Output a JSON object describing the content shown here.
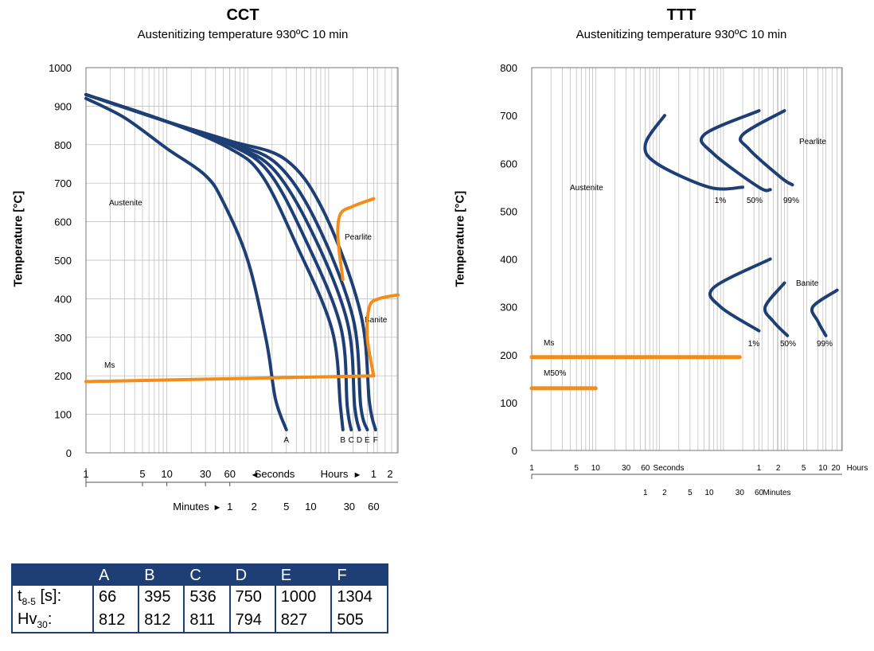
{
  "cct": {
    "title": "CCT",
    "subtitle": "Austenitizing temperature 930ºC 10 min",
    "ylabel": "Temperature [°C]",
    "y_ticks": [
      "1000",
      "900",
      "800",
      "700",
      "600",
      "500",
      "400",
      "300",
      "200",
      "100",
      "0"
    ],
    "sec_ticks": [
      "1",
      "5",
      "10",
      "30",
      "60"
    ],
    "hour_ticks": [
      "1",
      "2"
    ],
    "min_ticks": [
      "1",
      "2",
      "5",
      "10",
      "30",
      "60"
    ],
    "seconds_label": "Seconds",
    "hours_label": "Hours",
    "minutes_label": "Minutes",
    "region_labels": {
      "austenite": "Austenite",
      "pearlite": "Pearlite",
      "banite": "Banite",
      "ms": "Ms"
    },
    "curve_labels": [
      "A",
      "B",
      "C",
      "D",
      "E",
      "F"
    ]
  },
  "ttt": {
    "title": "TTT",
    "subtitle": "Austenitizing temperature 930ºC 10 min",
    "ylabel": "Temperature [°C]",
    "y_ticks": [
      "800",
      "700",
      "600",
      "500",
      "400",
      "300",
      "200",
      "100",
      "0"
    ],
    "sec_ticks": [
      "1",
      "5",
      "10",
      "30",
      "60"
    ],
    "hour_ticks": [
      "1",
      "2",
      "5",
      "10",
      "20"
    ],
    "min_ticks": [
      "1",
      "2",
      "5",
      "10",
      "30",
      "60"
    ],
    "seconds_label": "Seconds",
    "hours_label": "Hours",
    "minutes_label": "Minutes",
    "region_labels": {
      "austenite": "Austenite",
      "pearlite": "Pearlite",
      "banite": "Banite",
      "ms": "Ms",
      "m50": "M50%"
    },
    "pearlite_pct": [
      "1%",
      "50%",
      "99%"
    ],
    "banite_pct": [
      "1%",
      "50%",
      "99%"
    ]
  },
  "table": {
    "headers": [
      "A",
      "B",
      "C",
      "D",
      "E",
      "F"
    ],
    "row1_label_main": "t",
    "row1_label_sub": "8-5",
    "row1_label_rest": " [s]:",
    "row1": [
      "66",
      "395",
      "536",
      "750",
      "1000",
      "1304"
    ],
    "row2_label_main": "Hv",
    "row2_label_sub": "30",
    "row2_label_rest": ":",
    "row2": [
      "812",
      "812",
      "811",
      "794",
      "827",
      "505"
    ]
  },
  "colors": {
    "curve": "#1e3f75",
    "orange": "#f28c1b",
    "grid": "#b8b8b8",
    "table_header": "#1e3f75"
  },
  "chart_data": [
    {
      "type": "line",
      "title": "CCT",
      "subtitle": "Austenitizing temperature 930ºC 10 min",
      "xlabel": "Seconds / Minutes / Hours (log scale)",
      "ylabel": "Temperature [°C]",
      "x_scale": "log",
      "xlim_seconds": [
        1,
        7200
      ],
      "ylim": [
        0,
        1000
      ],
      "series": [
        {
          "name": "A",
          "x_seconds": [
            1,
            3,
            10,
            30,
            50,
            100,
            170,
            220,
            300
          ],
          "y": [
            920,
            870,
            790,
            720,
            650,
            500,
            290,
            140,
            60
          ]
        },
        {
          "name": "B",
          "x_seconds": [
            1,
            10,
            60,
            150,
            400,
            1100,
            1400,
            1500
          ],
          "y": [
            930,
            860,
            790,
            720,
            540,
            320,
            120,
            60
          ]
        },
        {
          "name": "C",
          "x_seconds": [
            1,
            10,
            60,
            180,
            500,
            1400,
            1700,
            1900
          ],
          "y": [
            930,
            860,
            800,
            730,
            560,
            330,
            120,
            60
          ]
        },
        {
          "name": "D",
          "x_seconds": [
            1,
            10,
            60,
            200,
            600,
            1700,
            2100,
            2400
          ],
          "y": [
            930,
            860,
            800,
            740,
            580,
            340,
            120,
            60
          ]
        },
        {
          "name": "E",
          "x_seconds": [
            1,
            10,
            60,
            230,
            700,
            2000,
            2500,
            3000
          ],
          "y": [
            930,
            860,
            805,
            750,
            600,
            350,
            120,
            60
          ]
        },
        {
          "name": "F",
          "x_seconds": [
            1,
            10,
            60,
            300,
            900,
            2500,
            3200,
            3800
          ],
          "y": [
            930,
            860,
            810,
            760,
            620,
            360,
            130,
            60
          ]
        },
        {
          "name": "Pearlite",
          "x_seconds": [
            1500,
            1300,
            1400,
            2000,
            3600
          ],
          "y": [
            450,
            560,
            620,
            640,
            660
          ]
        },
        {
          "name": "Banite",
          "x_seconds": [
            3600,
            3000,
            3200,
            4200,
            7200
          ],
          "y": [
            200,
            300,
            380,
            400,
            410
          ]
        },
        {
          "name": "Ms",
          "x_seconds": [
            1,
            3600
          ],
          "y": [
            185,
            200
          ]
        }
      ]
    },
    {
      "type": "line",
      "title": "TTT",
      "subtitle": "Austenitizing temperature 930ºC 10 min",
      "xlabel": "Seconds / Minutes / Hours (log scale)",
      "ylabel": "Temperature [°C]",
      "x_scale": "log",
      "xlim_seconds": [
        1,
        72000
      ],
      "ylim": [
        0,
        800
      ],
      "series": [
        {
          "name": "Pearlite 1%",
          "x_seconds": [
            120,
            60,
            90,
            600,
            2000
          ],
          "y": [
            700,
            640,
            600,
            550,
            550
          ]
        },
        {
          "name": "Pearlite 50%",
          "x_seconds": [
            3600,
            500,
            700,
            3600,
            5400
          ],
          "y": [
            710,
            660,
            620,
            550,
            545
          ]
        },
        {
          "name": "Pearlite 99%",
          "x_seconds": [
            9000,
            2000,
            2500,
            8000,
            12000
          ],
          "y": [
            710,
            660,
            630,
            570,
            555
          ]
        },
        {
          "name": "Banite 1%",
          "x_seconds": [
            5400,
            700,
            900,
            3600
          ],
          "y": [
            400,
            340,
            300,
            250
          ]
        },
        {
          "name": "Banite 50%",
          "x_seconds": [
            9000,
            4500,
            6000,
            10000
          ],
          "y": [
            350,
            300,
            270,
            240
          ]
        },
        {
          "name": "Banite 99%",
          "x_seconds": [
            60000,
            25000,
            30000,
            40000
          ],
          "y": [
            335,
            300,
            270,
            240
          ]
        },
        {
          "name": "Ms",
          "x_seconds": [
            1,
            1800
          ],
          "y": [
            195,
            195
          ]
        },
        {
          "name": "M50%",
          "x_seconds": [
            1,
            10
          ],
          "y": [
            130,
            130
          ]
        }
      ]
    }
  ]
}
